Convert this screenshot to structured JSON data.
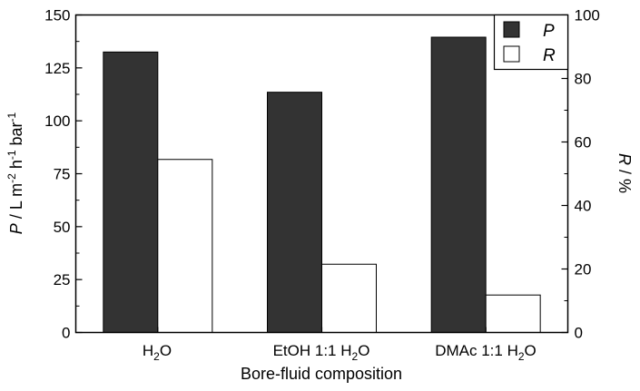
{
  "chart_data": {
    "type": "bar",
    "categories": [
      "H₂O",
      "EtOH 1:1 H₂O",
      "DMAc 1:1 H₂O"
    ],
    "series": [
      {
        "name": "P",
        "axis": "left",
        "color": "#333333",
        "values": [
          132.5,
          113.5,
          139.5
        ]
      },
      {
        "name": "R",
        "axis": "right",
        "color": "#ffffff",
        "values": [
          54.5,
          21.5,
          11.8
        ]
      }
    ],
    "xlabel": "Bore-fluid composition",
    "ylabel_left": "P / L m⁻² h⁻¹ bar⁻¹",
    "ylabel_right": "R / %",
    "ylim_left": [
      0,
      150
    ],
    "ylim_right": [
      0,
      100
    ],
    "yticks_left": [
      "0",
      "25",
      "50",
      "75",
      "100",
      "125",
      "150"
    ],
    "yticks_right": [
      "0",
      "20",
      "40",
      "60",
      "80",
      "100"
    ],
    "grid": false,
    "legend_position": "top-right"
  }
}
